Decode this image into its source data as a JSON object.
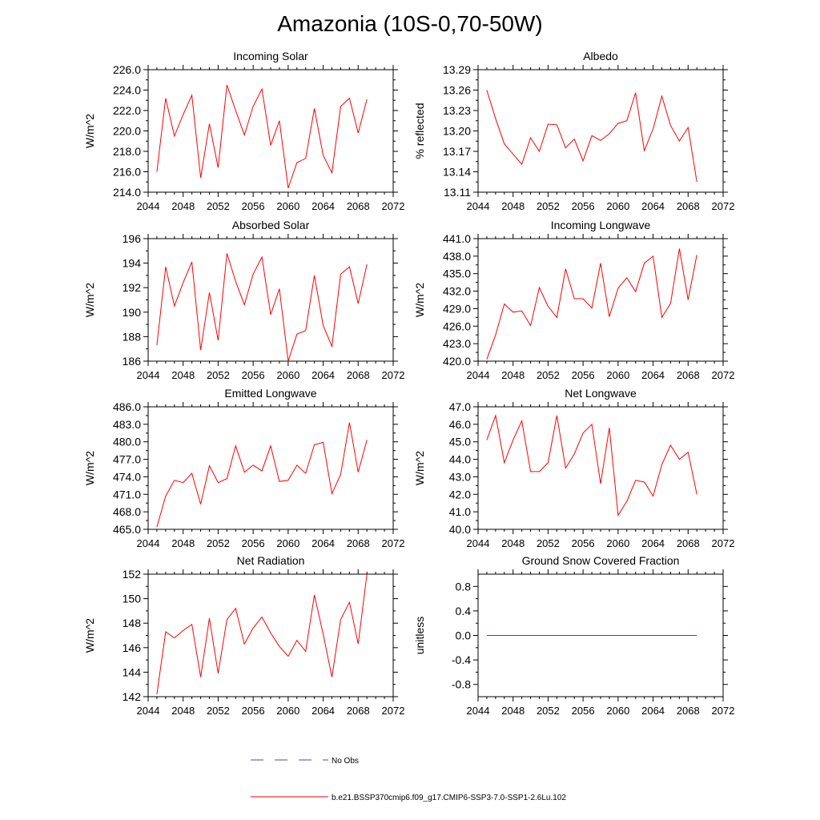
{
  "title": "Amazonia (10S-0,70-50W)",
  "legend": {
    "obs_label": "No Obs",
    "model_label": "b.e21.BSSP370cmip6.f09_g17.CMIP6-SSP3-7.0-SSP1-2.6Lu.102",
    "obs_color": "#4a4aa8",
    "model_color": "#ff0000"
  },
  "chart_data": [
    {
      "type": "line",
      "title": "Incoming Solar",
      "ylabel": "W/m^2",
      "xlim": [
        2044,
        2072
      ],
      "x_ticks": [
        2044,
        2048,
        2052,
        2056,
        2060,
        2064,
        2068,
        2072
      ],
      "ylim": [
        214,
        226
      ],
      "y_ticks": [
        214,
        216,
        218,
        220,
        222,
        224,
        226
      ],
      "y_decimals": 1,
      "x": [
        2045,
        2046,
        2047,
        2048,
        2049,
        2050,
        2051,
        2052,
        2053,
        2054,
        2055,
        2056,
        2057,
        2058,
        2059,
        2060,
        2061,
        2062,
        2063,
        2064,
        2065,
        2066,
        2067,
        2068,
        2069
      ],
      "series": [
        {
          "color": "#ff0000",
          "values": [
            216.0,
            223.2,
            219.5,
            221.6,
            223.5,
            215.4,
            220.7,
            216.4,
            224.5,
            222.0,
            219.6,
            222.4,
            224.1,
            218.6,
            221.0,
            214.4,
            216.9,
            217.3,
            222.2,
            217.6,
            215.9,
            222.4,
            223.2,
            219.8,
            223.1
          ]
        }
      ]
    },
    {
      "type": "line",
      "title": "Albedo",
      "ylabel": "% reflected",
      "xlim": [
        2044,
        2072
      ],
      "x_ticks": [
        2044,
        2048,
        2052,
        2056,
        2060,
        2064,
        2068,
        2072
      ],
      "ylim": [
        13.11,
        13.29
      ],
      "y_ticks": [
        13.11,
        13.14,
        13.17,
        13.2,
        13.23,
        13.26,
        13.29
      ],
      "y_decimals": 2,
      "x": [
        2045,
        2046,
        2047,
        2048,
        2049,
        2050,
        2051,
        2052,
        2053,
        2054,
        2055,
        2056,
        2057,
        2058,
        2059,
        2060,
        2061,
        2062,
        2063,
        2064,
        2065,
        2066,
        2067,
        2068,
        2069
      ],
      "series": [
        {
          "color": "#ff0000",
          "values": [
            13.26,
            13.218,
            13.181,
            13.166,
            13.151,
            13.19,
            13.17,
            13.21,
            13.209,
            13.175,
            13.188,
            13.156,
            13.193,
            13.186,
            13.196,
            13.211,
            13.215,
            13.256,
            13.171,
            13.203,
            13.251,
            13.208,
            13.185,
            13.205,
            13.125
          ]
        }
      ]
    },
    {
      "type": "line",
      "title": "Absorbed Solar",
      "ylabel": "W/m^2",
      "xlim": [
        2044,
        2072
      ],
      "x_ticks": [
        2044,
        2048,
        2052,
        2056,
        2060,
        2064,
        2068,
        2072
      ],
      "ylim": [
        186,
        196
      ],
      "y_ticks": [
        186,
        188,
        190,
        192,
        194,
        196
      ],
      "y_decimals": 0,
      "x": [
        2045,
        2046,
        2047,
        2048,
        2049,
        2050,
        2051,
        2052,
        2053,
        2054,
        2055,
        2056,
        2057,
        2058,
        2059,
        2060,
        2061,
        2062,
        2063,
        2064,
        2065,
        2066,
        2067,
        2068,
        2069
      ],
      "series": [
        {
          "color": "#ff0000",
          "values": [
            187.3,
            193.7,
            190.5,
            192.4,
            194.1,
            186.9,
            191.6,
            187.7,
            194.8,
            192.5,
            190.6,
            193.1,
            194.5,
            189.8,
            191.9,
            186.0,
            188.2,
            188.5,
            193.0,
            188.9,
            187.2,
            193.1,
            193.7,
            190.7,
            193.9
          ]
        }
      ]
    },
    {
      "type": "line",
      "title": "Incoming Longwave",
      "ylabel": "W/m^2",
      "xlim": [
        2044,
        2072
      ],
      "x_ticks": [
        2044,
        2048,
        2052,
        2056,
        2060,
        2064,
        2068,
        2072
      ],
      "ylim": [
        420,
        441
      ],
      "y_ticks": [
        420,
        423,
        426,
        429,
        432,
        435,
        438,
        441
      ],
      "y_decimals": 1,
      "x": [
        2045,
        2046,
        2047,
        2048,
        2049,
        2050,
        2051,
        2052,
        2053,
        2054,
        2055,
        2056,
        2057,
        2058,
        2059,
        2060,
        2061,
        2062,
        2063,
        2064,
        2065,
        2066,
        2067,
        2068,
        2069
      ],
      "series": [
        {
          "color": "#ff0000",
          "values": [
            420.3,
            424.5,
            429.8,
            428.4,
            428.6,
            426.1,
            432.6,
            429.4,
            427.5,
            435.8,
            430.7,
            430.7,
            429.1,
            436.8,
            427.6,
            432.5,
            434.3,
            431.9,
            436.8,
            438.0,
            427.5,
            429.9,
            439.3,
            430.5,
            438.2
          ]
        }
      ]
    },
    {
      "type": "line",
      "title": "Emitted Longwave",
      "ylabel": "W/m^2",
      "xlim": [
        2044,
        2072
      ],
      "x_ticks": [
        2044,
        2048,
        2052,
        2056,
        2060,
        2064,
        2068,
        2072
      ],
      "ylim": [
        465,
        486
      ],
      "y_ticks": [
        465,
        468,
        471,
        474,
        477,
        480,
        483,
        486
      ],
      "y_decimals": 1,
      "x": [
        2045,
        2046,
        2047,
        2048,
        2049,
        2050,
        2051,
        2052,
        2053,
        2054,
        2055,
        2056,
        2057,
        2058,
        2059,
        2060,
        2061,
        2062,
        2063,
        2064,
        2065,
        2066,
        2067,
        2068,
        2069
      ],
      "series": [
        {
          "color": "#ff0000",
          "values": [
            465.4,
            470.7,
            473.4,
            473.0,
            474.6,
            469.3,
            475.9,
            473.0,
            473.7,
            479.3,
            474.8,
            476.0,
            475.0,
            479.3,
            473.2,
            473.4,
            476.0,
            474.6,
            479.5,
            479.9,
            471.1,
            474.4,
            483.3,
            474.8,
            480.3
          ]
        }
      ]
    },
    {
      "type": "line",
      "title": "Net Longwave",
      "ylabel": "W/m^2",
      "xlim": [
        2044,
        2072
      ],
      "x_ticks": [
        2044,
        2048,
        2052,
        2056,
        2060,
        2064,
        2068,
        2072
      ],
      "ylim": [
        40,
        47
      ],
      "y_ticks": [
        40,
        41,
        42,
        43,
        44,
        45,
        46,
        47
      ],
      "y_decimals": 1,
      "x": [
        2045,
        2046,
        2047,
        2048,
        2049,
        2050,
        2051,
        2052,
        2053,
        2054,
        2055,
        2056,
        2057,
        2058,
        2059,
        2060,
        2061,
        2062,
        2063,
        2064,
        2065,
        2066,
        2067,
        2068,
        2069
      ],
      "series": [
        {
          "color": "#ff0000",
          "values": [
            45.1,
            46.5,
            43.8,
            45.1,
            46.2,
            43.3,
            43.3,
            43.8,
            46.5,
            43.5,
            44.3,
            45.5,
            46.0,
            42.6,
            45.8,
            40.8,
            41.6,
            42.8,
            42.7,
            41.9,
            43.7,
            44.8,
            44.0,
            44.4,
            42.0
          ]
        }
      ]
    },
    {
      "type": "line",
      "title": "Net Radiation",
      "ylabel": "W/m^2",
      "xlim": [
        2044,
        2072
      ],
      "x_ticks": [
        2044,
        2048,
        2052,
        2056,
        2060,
        2064,
        2068,
        2072
      ],
      "ylim": [
        142,
        152
      ],
      "y_ticks": [
        142,
        144,
        146,
        148,
        150,
        152
      ],
      "y_decimals": 0,
      "x": [
        2045,
        2046,
        2047,
        2048,
        2049,
        2050,
        2051,
        2052,
        2053,
        2054,
        2055,
        2056,
        2057,
        2058,
        2059,
        2060,
        2061,
        2062,
        2063,
        2064,
        2065,
        2066,
        2067,
        2068,
        2069
      ],
      "series": [
        {
          "color": "#ff0000",
          "values": [
            142.2,
            147.3,
            146.8,
            147.4,
            147.9,
            143.6,
            148.4,
            143.9,
            148.3,
            149.2,
            146.3,
            147.6,
            148.5,
            147.2,
            146.1,
            145.3,
            146.6,
            145.7,
            150.3,
            147.1,
            143.6,
            148.3,
            149.7,
            146.3,
            152.0
          ]
        }
      ]
    },
    {
      "type": "line",
      "title": "Ground Snow Covered Fraction",
      "ylabel": "unitless",
      "xlim": [
        2044,
        2072
      ],
      "x_ticks": [
        2044,
        2048,
        2052,
        2056,
        2060,
        2064,
        2068,
        2072
      ],
      "ylim": [
        -1.0,
        1.0
      ],
      "y_ticks": [
        -0.8,
        -0.4,
        0.0,
        0.4,
        0.8
      ],
      "y_decimals": 1,
      "x": [
        2045,
        2046,
        2047,
        2048,
        2049,
        2050,
        2051,
        2052,
        2053,
        2054,
        2055,
        2056,
        2057,
        2058,
        2059,
        2060,
        2061,
        2062,
        2063,
        2064,
        2065,
        2066,
        2067,
        2068,
        2069
      ],
      "series": [
        {
          "color": "#ff0000",
          "values": [
            0,
            0,
            0,
            0,
            0,
            0,
            0,
            0,
            0,
            0,
            0,
            0,
            0,
            0,
            0,
            0,
            0,
            0,
            0,
            0,
            0,
            0,
            0,
            0,
            0
          ]
        }
      ]
    }
  ]
}
